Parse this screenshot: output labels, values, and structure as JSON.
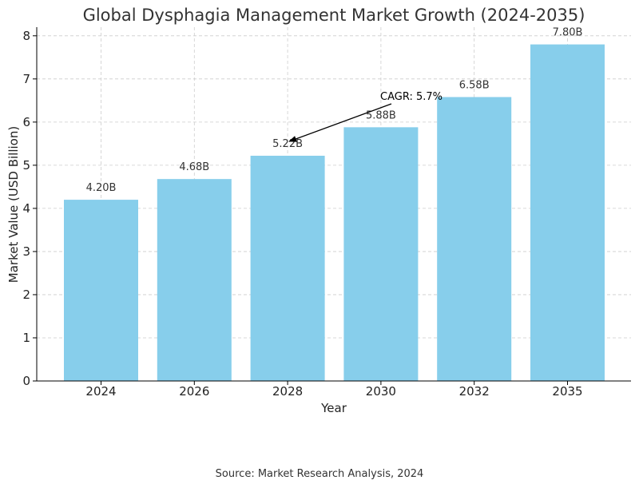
{
  "chart_data": {
    "type": "bar",
    "title": "Global Dysphagia Management Market Growth (2024-2035)",
    "xlabel": "Year",
    "ylabel": "Market Value (USD Billion)",
    "categories": [
      "2024",
      "2026",
      "2028",
      "2030",
      "2032",
      "2035"
    ],
    "values": [
      4.2,
      4.68,
      5.22,
      5.88,
      6.58,
      7.8
    ],
    "data_labels": [
      "4.20B",
      "4.68B",
      "5.22B",
      "5.88B",
      "6.58B",
      "7.80B"
    ],
    "ylim": [
      0,
      8.2
    ],
    "yticks": [
      0,
      1,
      2,
      3,
      4,
      5,
      6,
      7,
      8
    ],
    "grid": true,
    "bar_color": "#87CEEB",
    "annotation": {
      "text": "CAGR: 5.7%",
      "points_to_category": "2028"
    }
  },
  "source": "Source: Market Research Analysis, 2024"
}
